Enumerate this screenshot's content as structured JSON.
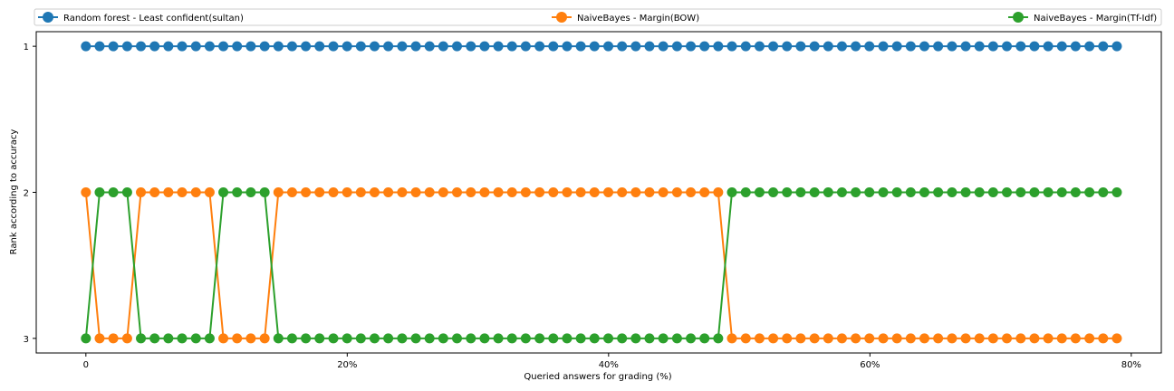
{
  "chart_data": {
    "type": "line",
    "xlabel": "Queried answers for grading (%)",
    "ylabel": "Rank according to accuracy",
    "x_ticks": [
      0,
      20,
      40,
      60,
      80
    ],
    "x_tick_labels": [
      "0",
      "20%",
      "40%",
      "60%",
      "80%"
    ],
    "y_ticks": [
      1,
      2,
      3
    ],
    "y_tick_labels": [
      "1",
      "2",
      "3"
    ],
    "xlim": [
      -3.8,
      82.3
    ],
    "ylim": [
      3.1,
      0.9
    ],
    "y_inverted": true,
    "grid": false,
    "legend_placement": "top, spanning full width",
    "x": [
      0,
      1.05,
      2.1,
      3.16,
      4.21,
      5.26,
      6.31,
      7.36,
      8.42,
      9.47,
      10.52,
      11.57,
      12.62,
      13.68,
      14.73,
      15.78,
      16.83,
      17.88,
      18.94,
      19.99,
      21.04,
      22.09,
      23.14,
      24.2,
      25.25,
      26.3,
      27.35,
      28.4,
      29.46,
      30.51,
      31.56,
      32.61,
      33.66,
      34.72,
      35.77,
      36.82,
      37.87,
      38.92,
      39.98,
      41.03,
      42.08,
      43.13,
      44.18,
      45.24,
      46.29,
      47.34,
      48.39,
      49.44,
      50.5,
      51.55,
      52.6,
      53.65,
      54.7,
      55.76,
      56.81,
      57.86,
      58.91,
      59.96,
      61.02,
      62.07,
      63.12,
      64.17,
      65.22,
      66.28,
      67.33,
      68.38,
      69.43,
      70.48,
      71.54,
      72.59,
      73.64,
      74.69,
      75.74,
      76.8,
      77.85,
      78.9
    ],
    "series": [
      {
        "name": "Random forest - Least confident(sultan)",
        "color": "#1f77b4",
        "values": [
          1,
          1,
          1,
          1,
          1,
          1,
          1,
          1,
          1,
          1,
          1,
          1,
          1,
          1,
          1,
          1,
          1,
          1,
          1,
          1,
          1,
          1,
          1,
          1,
          1,
          1,
          1,
          1,
          1,
          1,
          1,
          1,
          1,
          1,
          1,
          1,
          1,
          1,
          1,
          1,
          1,
          1,
          1,
          1,
          1,
          1,
          1,
          1,
          1,
          1,
          1,
          1,
          1,
          1,
          1,
          1,
          1,
          1,
          1,
          1,
          1,
          1,
          1,
          1,
          1,
          1,
          1,
          1,
          1,
          1,
          1,
          1,
          1,
          1,
          1,
          1
        ]
      },
      {
        "name": "NaiveBayes - Margin(BOW)",
        "color": "#ff7f0e",
        "values": [
          2,
          3,
          3,
          3,
          2,
          2,
          2,
          2,
          2,
          2,
          3,
          3,
          3,
          3,
          2,
          2,
          2,
          2,
          2,
          2,
          2,
          2,
          2,
          2,
          2,
          2,
          2,
          2,
          2,
          2,
          2,
          2,
          2,
          2,
          2,
          2,
          2,
          2,
          2,
          2,
          2,
          2,
          2,
          2,
          2,
          2,
          2,
          3,
          3,
          3,
          3,
          3,
          3,
          3,
          3,
          3,
          3,
          3,
          3,
          3,
          3,
          3,
          3,
          3,
          3,
          3,
          3,
          3,
          3,
          3,
          3,
          3,
          3,
          3,
          3,
          3
        ]
      },
      {
        "name": "NaiveBayes - Margin(Tf-Idf)",
        "color": "#2ca02c",
        "values": [
          3,
          2,
          2,
          2,
          3,
          3,
          3,
          3,
          3,
          3,
          2,
          2,
          2,
          2,
          3,
          3,
          3,
          3,
          3,
          3,
          3,
          3,
          3,
          3,
          3,
          3,
          3,
          3,
          3,
          3,
          3,
          3,
          3,
          3,
          3,
          3,
          3,
          3,
          3,
          3,
          3,
          3,
          3,
          3,
          3,
          3,
          3,
          2,
          2,
          2,
          2,
          2,
          2,
          2,
          2,
          2,
          2,
          2,
          2,
          2,
          2,
          2,
          2,
          2,
          2,
          2,
          2,
          2,
          2,
          2,
          2,
          2,
          2,
          2,
          2,
          2
        ]
      }
    ]
  }
}
